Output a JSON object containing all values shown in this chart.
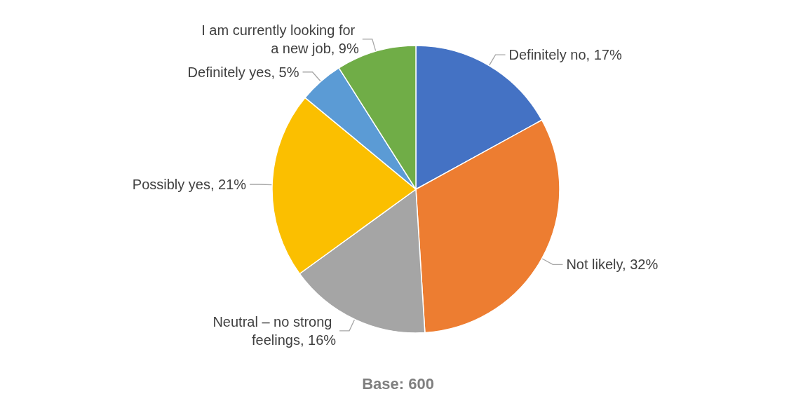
{
  "chart_data": {
    "type": "pie",
    "categories": [
      "Definitely no",
      "Not likely",
      "Neutral – no strong feelings",
      "Possibly yes",
      "Definitely yes",
      "I am currently looking for a new job"
    ],
    "values": [
      17,
      32,
      16,
      21,
      5,
      9
    ],
    "value_labels": [
      "17%",
      "32%",
      "16%",
      "21%",
      "5%",
      "9%"
    ],
    "colors": [
      "#4472c4",
      "#ed7d31",
      "#a5a5a5",
      "#fbbf00",
      "#5b9bd5",
      "#70ad47"
    ],
    "annotations": [
      "Base: 600"
    ]
  }
}
